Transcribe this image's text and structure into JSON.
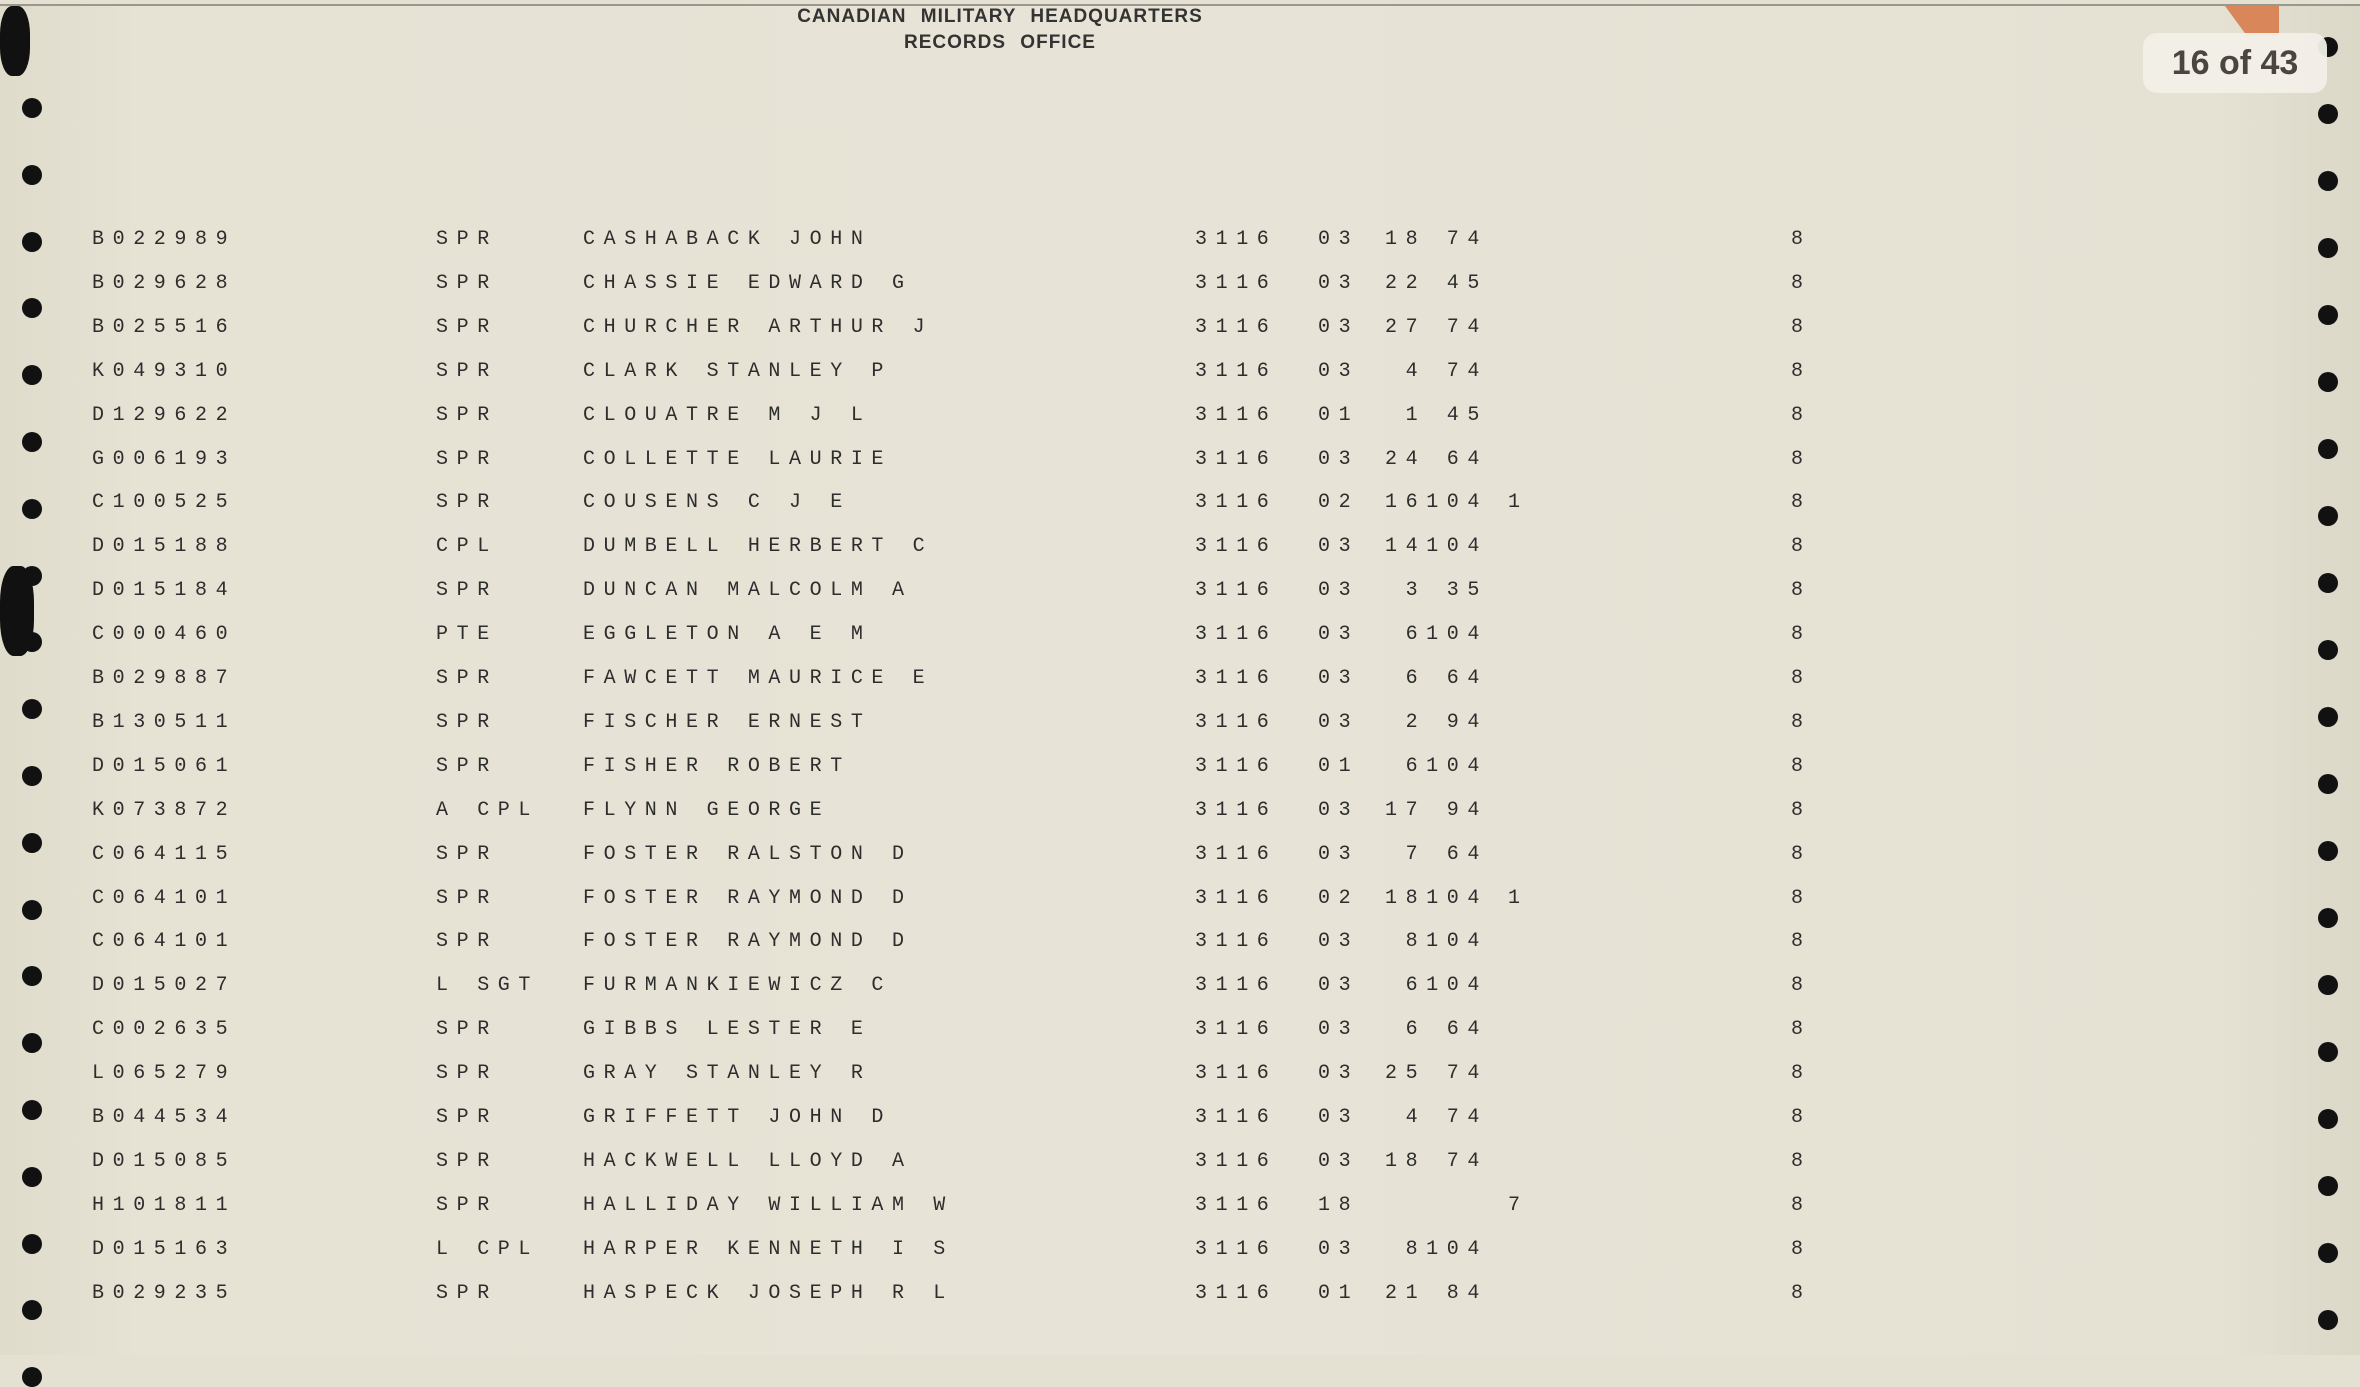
{
  "header": {
    "line1": "CANADIAN MILITARY HEADQUARTERS",
    "line2": "RECORDS OFFICE"
  },
  "page_indicator": "16 of 43",
  "rows": [
    {
      "id": "B022989",
      "rank": "SPR",
      "name": "CASHABACK JOHN",
      "unit": "3116",
      "code": "03",
      "value": "18 74",
      "extra": "",
      "last": "8"
    },
    {
      "id": "B029628",
      "rank": "SPR",
      "name": "CHASSIE EDWARD G",
      "unit": "3116",
      "code": "03",
      "value": "22 45",
      "extra": "",
      "last": "8"
    },
    {
      "id": "B025516",
      "rank": "SPR",
      "name": "CHURCHER ARTHUR J",
      "unit": "3116",
      "code": "03",
      "value": "27 74",
      "extra": "",
      "last": "8"
    },
    {
      "id": "K049310",
      "rank": "SPR",
      "name": "CLARK STANLEY P",
      "unit": "3116",
      "code": "03",
      "value": "4 74",
      "extra": "",
      "last": "8"
    },
    {
      "id": "D129622",
      "rank": "SPR",
      "name": "CLOUATRE M J L",
      "unit": "3116",
      "code": "01",
      "value": "1 45",
      "extra": "",
      "last": "8"
    },
    {
      "id": "G006193",
      "rank": "SPR",
      "name": "COLLETTE LAURIE",
      "unit": "3116",
      "code": "03",
      "value": "24 64",
      "extra": "",
      "last": "8"
    },
    {
      "id": "C100525",
      "rank": "SPR",
      "name": "COUSENS C J E",
      "unit": "3116",
      "code": "02",
      "value": "16104",
      "extra": "1",
      "last": "8"
    },
    {
      "id": "D015188",
      "rank": "CPL",
      "name": "DUMBELL HERBERT C",
      "unit": "3116",
      "code": "03",
      "value": "14104",
      "extra": "",
      "last": "8"
    },
    {
      "id": "D015184",
      "rank": "SPR",
      "name": "DUNCAN MALCOLM A",
      "unit": "3116",
      "code": "03",
      "value": "3 35",
      "extra": "",
      "last": "8"
    },
    {
      "id": "C000460",
      "rank": "PTE",
      "name": "EGGLETON A E M",
      "unit": "3116",
      "code": "03",
      "value": "6104",
      "extra": "",
      "last": "8"
    },
    {
      "id": "B029887",
      "rank": "SPR",
      "name": "FAWCETT MAURICE E",
      "unit": "3116",
      "code": "03",
      "value": "6 64",
      "extra": "",
      "last": "8"
    },
    {
      "id": "B130511",
      "rank": "SPR",
      "name": "FISCHER ERNEST",
      "unit": "3116",
      "code": "03",
      "value": "2 94",
      "extra": "",
      "last": "8"
    },
    {
      "id": "D015061",
      "rank": "SPR",
      "name": "FISHER ROBERT",
      "unit": "3116",
      "code": "01",
      "value": "6104",
      "extra": "",
      "last": "8"
    },
    {
      "id": "K073872",
      "rank": "A CPL",
      "name": "FLYNN GEORGE",
      "unit": "3116",
      "code": "03",
      "value": "17 94",
      "extra": "",
      "last": "8"
    },
    {
      "id": "C064115",
      "rank": "SPR",
      "name": "FOSTER RALSTON D",
      "unit": "3116",
      "code": "03",
      "value": "7 64",
      "extra": "",
      "last": "8"
    },
    {
      "id": "C064101",
      "rank": "SPR",
      "name": "FOSTER RAYMOND D",
      "unit": "3116",
      "code": "02",
      "value": "18104",
      "extra": "1",
      "last": "8"
    },
    {
      "id": "C064101",
      "rank": "SPR",
      "name": "FOSTER RAYMOND D",
      "unit": "3116",
      "code": "03",
      "value": "8104",
      "extra": "",
      "last": "8"
    },
    {
      "id": "D015027",
      "rank": "L SGT",
      "name": "FURMANKIEWICZ C",
      "unit": "3116",
      "code": "03",
      "value": "6104",
      "extra": "",
      "last": "8"
    },
    {
      "id": "C002635",
      "rank": "SPR",
      "name": "GIBBS LESTER E",
      "unit": "3116",
      "code": "03",
      "value": "6 64",
      "extra": "",
      "last": "8"
    },
    {
      "id": "L065279",
      "rank": "SPR",
      "name": "GRAY STANLEY R",
      "unit": "3116",
      "code": "03",
      "value": "25 74",
      "extra": "",
      "last": "8"
    },
    {
      "id": "B044534",
      "rank": "SPR",
      "name": "GRIFFETT JOHN D",
      "unit": "3116",
      "code": "03",
      "value": "4 74",
      "extra": "",
      "last": "8"
    },
    {
      "id": "D015085",
      "rank": "SPR",
      "name": "HACKWELL LLOYD A",
      "unit": "3116",
      "code": "03",
      "value": "18 74",
      "extra": "",
      "last": "8"
    },
    {
      "id": "H101811",
      "rank": "SPR",
      "name": "HALLIDAY WILLIAM W",
      "unit": "3116",
      "code": "18",
      "value": "",
      "extra": "7",
      "last": "8"
    },
    {
      "id": "D015163",
      "rank": "L CPL",
      "name": "HARPER KENNETH I S",
      "unit": "3116",
      "code": "03",
      "value": "8104",
      "extra": "",
      "last": "8"
    },
    {
      "id": "B029235",
      "rank": "SPR",
      "name": "HASPECK JOSEPH R L",
      "unit": "3116",
      "code": "01",
      "value": "21 84",
      "extra": "",
      "last": "8"
    }
  ]
}
